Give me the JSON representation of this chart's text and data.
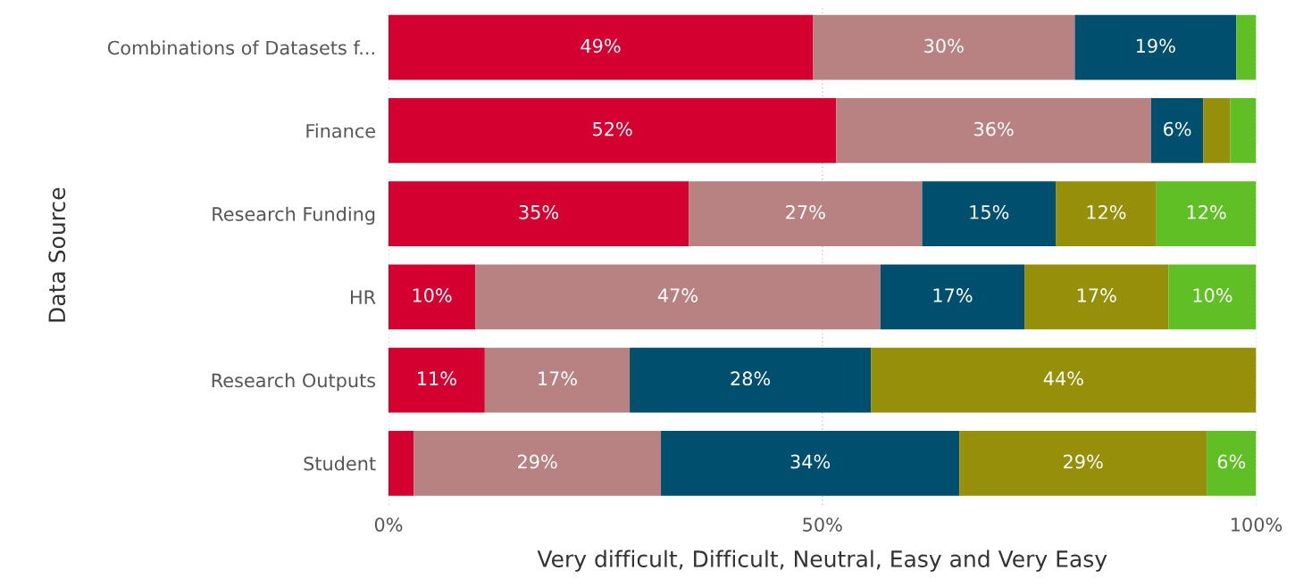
{
  "chart_data": {
    "type": "bar",
    "orientation": "horizontal",
    "stacked": true,
    "xlabel": "Very difficult, Difficult, Neutral, Easy and Very Easy",
    "ylabel": "Data Source",
    "categories": [
      "Combinations of Datasets f...",
      "Finance",
      "Research Funding",
      "HR",
      "Research Outputs",
      "Student"
    ],
    "series": [
      {
        "color": "#d40030",
        "values": [
          48.9,
          51.6,
          34.6,
          10.0,
          11.1,
          2.9
        ],
        "value_labels": [
          "49%",
          "52%",
          "35%",
          "10%",
          "11%",
          null
        ]
      },
      {
        "color": "#b98282",
        "values": [
          30.2,
          36.3,
          26.9,
          46.7,
          16.7,
          28.5
        ],
        "value_labels": [
          "30%",
          "36%",
          "27%",
          "47%",
          "17%",
          "29%"
        ]
      },
      {
        "color": "#004f6e",
        "values": [
          18.6,
          6.0,
          15.4,
          16.6,
          27.8,
          34.4
        ],
        "value_labels": [
          "19%",
          "6%",
          "15%",
          "17%",
          "28%",
          "34%"
        ]
      },
      {
        "color": "#968f0a",
        "values": [
          0,
          3.1,
          11.6,
          16.6,
          44.4,
          28.5
        ],
        "value_labels": [
          null,
          null,
          "12%",
          "17%",
          "44%",
          "29%"
        ]
      },
      {
        "color": "#5fbf24",
        "values": [
          2.3,
          3.0,
          11.5,
          10.1,
          0,
          5.7
        ],
        "value_labels": [
          null,
          null,
          "12%",
          "10%",
          null,
          "6%"
        ]
      }
    ],
    "xlim": [
      0,
      100
    ],
    "xticks": [
      {
        "value": 0,
        "label": "0%"
      },
      {
        "value": 50,
        "label": "50%"
      },
      {
        "value": 100,
        "label": "100%"
      }
    ],
    "grid": "x",
    "legend": false
  }
}
